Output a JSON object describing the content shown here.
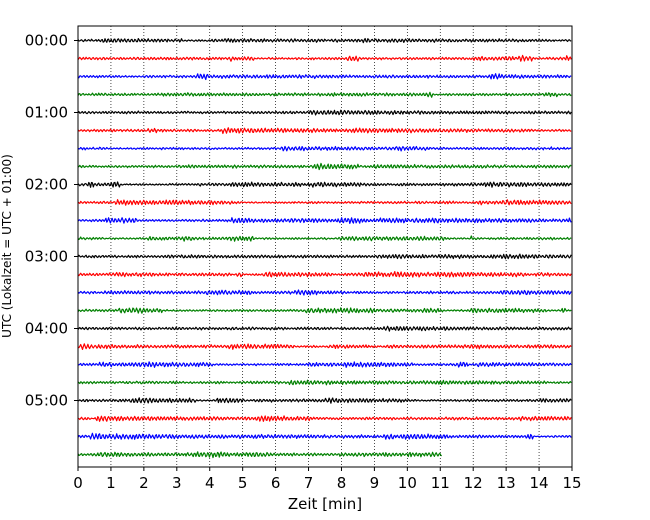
{
  "chart_data": {
    "type": "line",
    "title": "",
    "xlabel": "Zeit  [min]",
    "ylabel": "UTC (Lokalzeit = UTC + 01:00)",
    "xlim": [
      0,
      15
    ],
    "x_ticks": [
      "0",
      "1",
      "2",
      "3",
      "4",
      "5",
      "6",
      "7",
      "8",
      "9",
      "10",
      "11",
      "12",
      "13",
      "14",
      "15"
    ],
    "y_ticks": [
      "00:00",
      "01:00",
      "02:00",
      "03:00",
      "04:00",
      "05:00"
    ],
    "grid": "vertical dotted at each minute",
    "trace_colors": [
      "#000000",
      "#ff0000",
      "#0000ff",
      "#008000"
    ],
    "rows": [
      {
        "utc": "00:00",
        "end_min": 15
      },
      {
        "utc": "00:15",
        "end_min": 15
      },
      {
        "utc": "00:30",
        "end_min": 15
      },
      {
        "utc": "00:45",
        "end_min": 15
      },
      {
        "utc": "01:00",
        "end_min": 15
      },
      {
        "utc": "01:15",
        "end_min": 15
      },
      {
        "utc": "01:30",
        "end_min": 15
      },
      {
        "utc": "01:45",
        "end_min": 15
      },
      {
        "utc": "02:00",
        "end_min": 15
      },
      {
        "utc": "02:15",
        "end_min": 15
      },
      {
        "utc": "02:30",
        "end_min": 15
      },
      {
        "utc": "02:45",
        "end_min": 15
      },
      {
        "utc": "03:00",
        "end_min": 15
      },
      {
        "utc": "03:15",
        "end_min": 15
      },
      {
        "utc": "03:30",
        "end_min": 15
      },
      {
        "utc": "03:45",
        "end_min": 15
      },
      {
        "utc": "04:00",
        "end_min": 15
      },
      {
        "utc": "04:15",
        "end_min": 15
      },
      {
        "utc": "04:30",
        "end_min": 15
      },
      {
        "utc": "04:45",
        "end_min": 15
      },
      {
        "utc": "05:00",
        "end_min": 15
      },
      {
        "utc": "05:15",
        "end_min": 15
      },
      {
        "utc": "05:30",
        "end_min": 15
      },
      {
        "utc": "05:45",
        "end_min": 11.05
      }
    ]
  }
}
